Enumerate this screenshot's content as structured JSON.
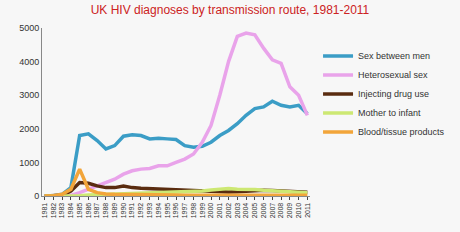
{
  "chart_data": {
    "type": "line",
    "title": "UK HIV diagnoses by transmission route, 1981-2011",
    "categories": [
      "1981",
      "1982",
      "1983",
      "1984",
      "1985",
      "1986",
      "1987",
      "1988",
      "1989",
      "1990",
      "1991",
      "1992",
      "1993",
      "1994",
      "1995",
      "1996",
      "1997",
      "1998",
      "1999",
      "2000",
      "2001",
      "2002",
      "2003",
      "2004",
      "2005",
      "2006",
      "2007",
      "2008",
      "2009",
      "2010",
      "2011"
    ],
    "series": [
      {
        "name": "Sex between men",
        "color": "#3b9dc6",
        "values": [
          0,
          10,
          50,
          250,
          1800,
          1850,
          1650,
          1400,
          1500,
          1780,
          1820,
          1800,
          1700,
          1720,
          1700,
          1680,
          1500,
          1450,
          1480,
          1600,
          1800,
          1950,
          2150,
          2400,
          2600,
          2650,
          2820,
          2700,
          2650,
          2700,
          2450
        ]
      },
      {
        "name": "Heterosexual sex",
        "color": "#e9a3ea",
        "values": [
          0,
          0,
          5,
          20,
          100,
          200,
          300,
          400,
          500,
          650,
          750,
          800,
          820,
          900,
          900,
          1000,
          1100,
          1250,
          1600,
          2100,
          3000,
          4000,
          4750,
          4850,
          4800,
          4400,
          4050,
          3950,
          3250,
          3000,
          2400
        ]
      },
      {
        "name": "Injecting drug use",
        "color": "#5a2c10",
        "values": [
          0,
          0,
          20,
          150,
          400,
          380,
          300,
          250,
          250,
          300,
          250,
          230,
          220,
          200,
          190,
          180,
          160,
          150,
          140,
          130,
          120,
          120,
          130,
          150,
          160,
          170,
          160,
          150,
          140,
          130,
          110
        ]
      },
      {
        "name": "Mother to infant",
        "color": "#cde873",
        "values": [
          0,
          0,
          0,
          0,
          10,
          30,
          40,
          50,
          60,
          70,
          80,
          90,
          100,
          100,
          110,
          110,
          120,
          130,
          150,
          180,
          200,
          220,
          200,
          200,
          190,
          170,
          160,
          150,
          140,
          120,
          100
        ]
      },
      {
        "name": "Blood/tissue products",
        "color": "#f2a53a",
        "values": [
          0,
          10,
          50,
          200,
          800,
          200,
          100,
          60,
          50,
          50,
          40,
          40,
          30,
          30,
          30,
          30,
          20,
          20,
          20,
          20,
          20,
          20,
          20,
          20,
          20,
          20,
          20,
          20,
          20,
          20,
          20
        ]
      }
    ],
    "ylim": [
      0,
      5000
    ],
    "yticks": [
      0,
      1000,
      2000,
      3000,
      4000,
      5000
    ],
    "grid": false,
    "legend": "right"
  }
}
